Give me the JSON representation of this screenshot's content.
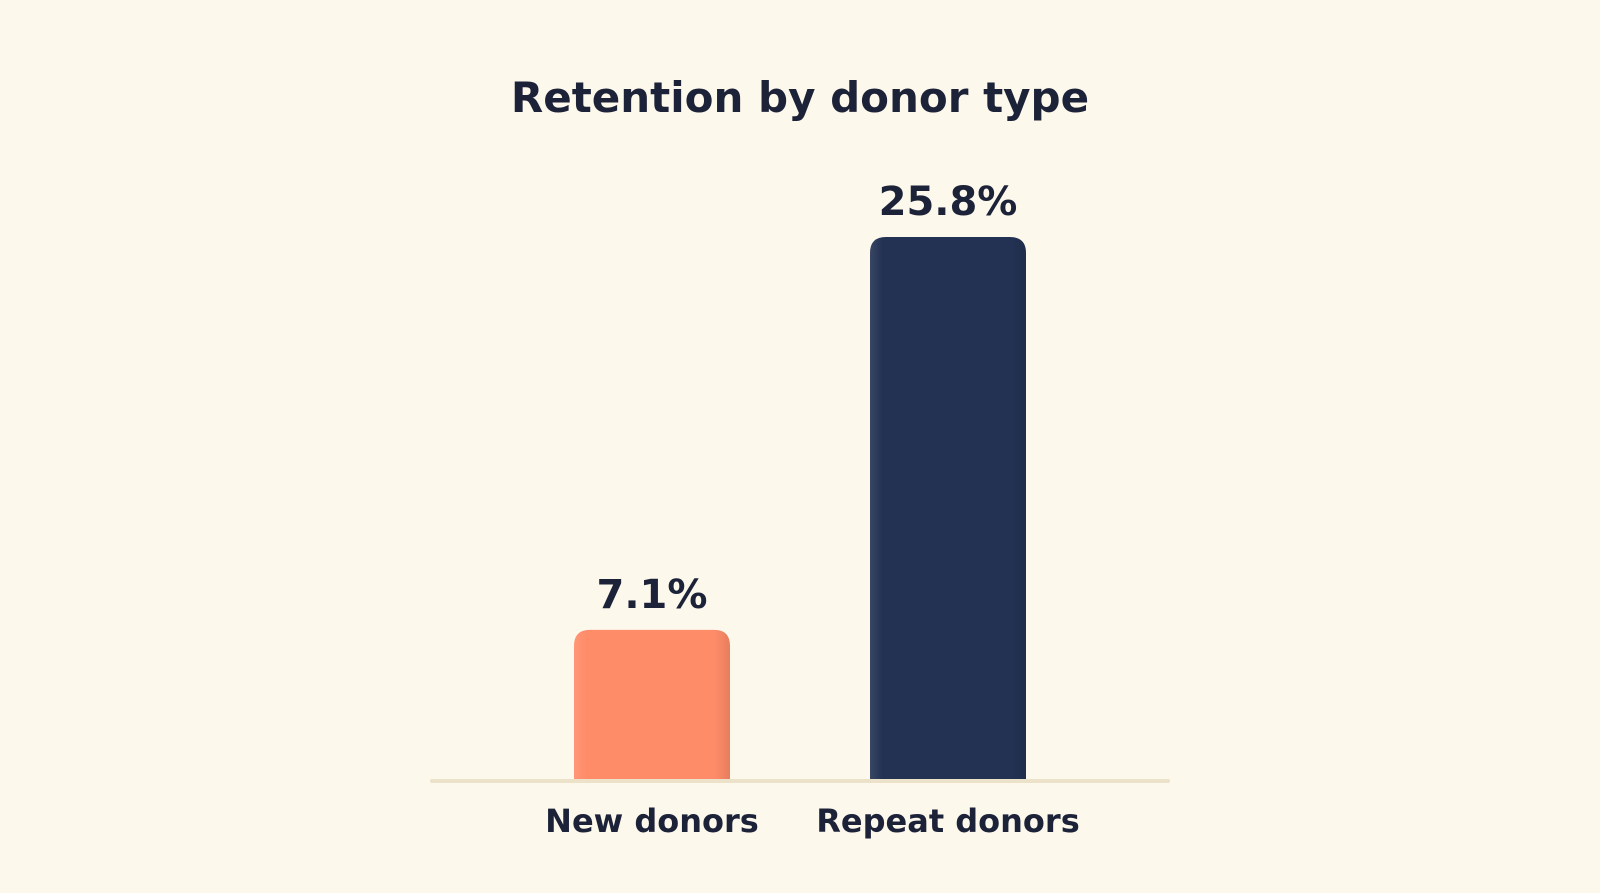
{
  "chart_data": {
    "type": "bar",
    "title": "Retention by donor type",
    "xlabel": "",
    "ylabel": "",
    "categories": [
      "New donors",
      "Repeat donors"
    ],
    "values": [
      7.1,
      25.8
    ],
    "value_labels": [
      "7.1%",
      "25.8%"
    ],
    "unit": "%",
    "ylim": [
      0,
      25.8
    ],
    "grid": false,
    "legend": "none",
    "colors": [
      "#ff8c69",
      "#233253"
    ],
    "baseline_color": "#ece1c9",
    "background_color": "#fdf8ec",
    "text_color": "#1c2238"
  }
}
